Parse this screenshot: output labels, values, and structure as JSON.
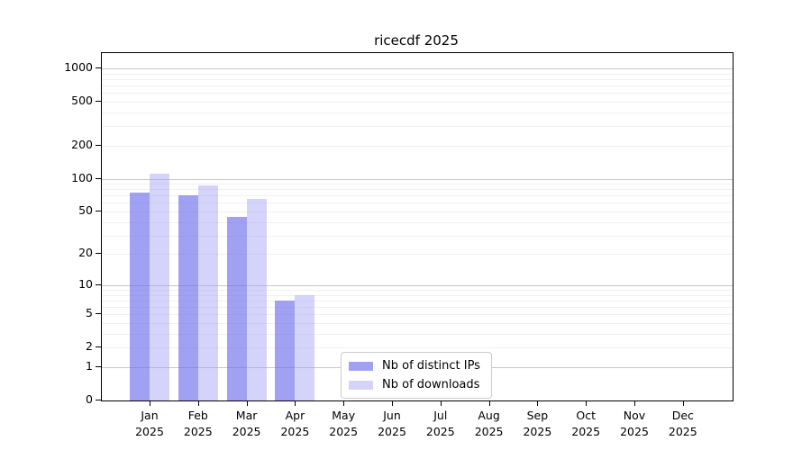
{
  "chart_data": {
    "type": "bar",
    "title": "ricecdf 2025",
    "x": [
      {
        "month": "Jan",
        "year": "2025"
      },
      {
        "month": "Feb",
        "year": "2025"
      },
      {
        "month": "Mar",
        "year": "2025"
      },
      {
        "month": "Apr",
        "year": "2025"
      },
      {
        "month": "May",
        "year": "2025"
      },
      {
        "month": "Jun",
        "year": "2025"
      },
      {
        "month": "Jul",
        "year": "2025"
      },
      {
        "month": "Aug",
        "year": "2025"
      },
      {
        "month": "Sep",
        "year": "2025"
      },
      {
        "month": "Oct",
        "year": "2025"
      },
      {
        "month": "Nov",
        "year": "2025"
      },
      {
        "month": "Dec",
        "year": "2025"
      }
    ],
    "series": [
      {
        "name": "Nb of distinct IPs",
        "legend_color": "#a1a1f4",
        "fill": "rgba(113,113,238,0.66)",
        "values": [
          75,
          71,
          45,
          7,
          0,
          0,
          0,
          0,
          0,
          0,
          0,
          0
        ]
      },
      {
        "name": "Nb of downloads",
        "legend_color": "#d4d4fb",
        "fill": "rgba(160,160,247,0.45)",
        "values": [
          110,
          86,
          65,
          8,
          0,
          0,
          0,
          0,
          0,
          0,
          0,
          0
        ]
      }
    ],
    "y_scale": "log1p",
    "y_ticks": [
      0,
      1,
      2,
      5,
      10,
      20,
      50,
      100,
      200,
      500,
      1000
    ],
    "ylim": [
      0,
      1200
    ],
    "xlabel": "",
    "ylabel": "",
    "grid": "horizontal",
    "legend_position": "bottom-center"
  }
}
